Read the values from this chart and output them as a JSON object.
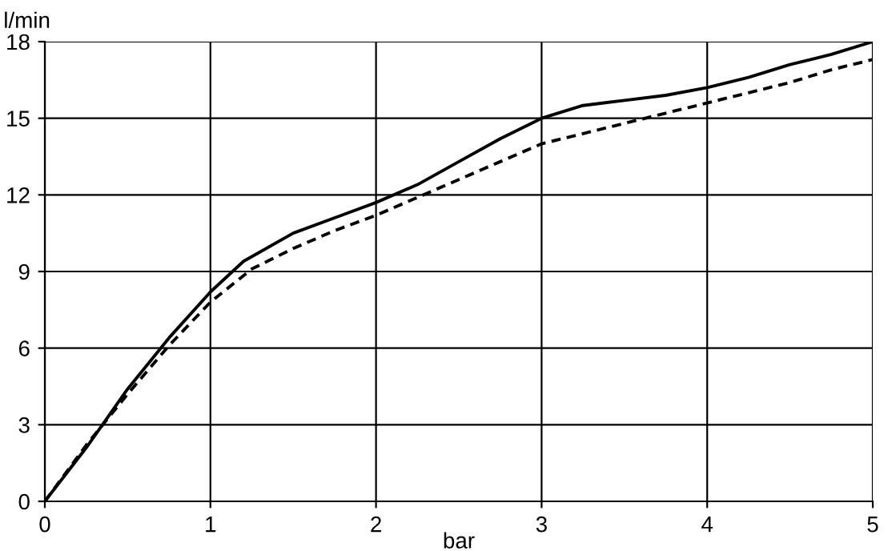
{
  "chart_data": {
    "type": "line",
    "xlabel": "bar",
    "ylabel": "l/min",
    "xlim": [
      0,
      5
    ],
    "ylim": [
      0,
      18
    ],
    "xticks": [
      0,
      1,
      2,
      3,
      4,
      5
    ],
    "yticks": [
      0,
      3,
      6,
      9,
      12,
      15,
      18
    ],
    "grid": true,
    "legend": false,
    "marker": "none",
    "series": [
      {
        "color": "#000000",
        "line_style": "solid",
        "x": [
          0,
          0.25,
          0.5,
          0.75,
          1,
          1.2,
          1.5,
          1.75,
          2,
          2.25,
          2.5,
          2.75,
          3,
          3.25,
          3.5,
          3.75,
          4,
          4.25,
          4.5,
          4.75,
          5
        ],
        "values": [
          0,
          2.1,
          4.4,
          6.4,
          8.2,
          9.4,
          10.5,
          11.1,
          11.7,
          12.4,
          13.3,
          14.2,
          15,
          15.5,
          15.7,
          15.9,
          16.2,
          16.6,
          17.1,
          17.5,
          18
        ]
      },
      {
        "color": "#000000",
        "line_style": "dashed",
        "x": [
          0,
          0.25,
          0.5,
          0.75,
          1,
          1.25,
          1.5,
          1.75,
          2,
          2.25,
          2.5,
          2.75,
          3,
          3.25,
          3.5,
          3.75,
          4,
          4.25,
          4.5,
          4.75,
          5
        ],
        "values": [
          0,
          2.2,
          4.2,
          6.1,
          7.8,
          9.1,
          9.9,
          10.6,
          11.2,
          11.9,
          12.6,
          13.3,
          14,
          14.4,
          14.8,
          15.2,
          15.6,
          16,
          16.4,
          16.9,
          17.3
        ]
      }
    ]
  }
}
